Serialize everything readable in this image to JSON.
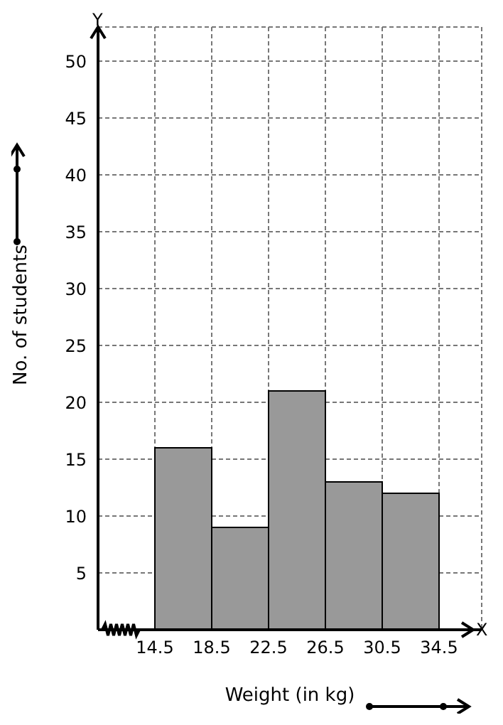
{
  "chart_data": {
    "type": "histogram",
    "xlabel": "Weight (in kg)",
    "ylabel": "No. of students",
    "bins": [
      14.5,
      18.5,
      22.5,
      26.5,
      30.5,
      34.5
    ],
    "values": [
      16,
      9,
      21,
      13,
      12
    ],
    "color": "#999999",
    "xlim": [
      10.5,
      37.5
    ],
    "xticks": [
      14.5,
      18.5,
      22.5,
      26.5,
      30.5,
      34.5
    ],
    "ylim": [
      0,
      53
    ],
    "yticks": [
      5,
      10,
      15,
      20,
      25,
      30,
      35,
      40,
      45,
      50
    ],
    "grid": true,
    "annotations": [
      "X",
      "Y"
    ]
  }
}
